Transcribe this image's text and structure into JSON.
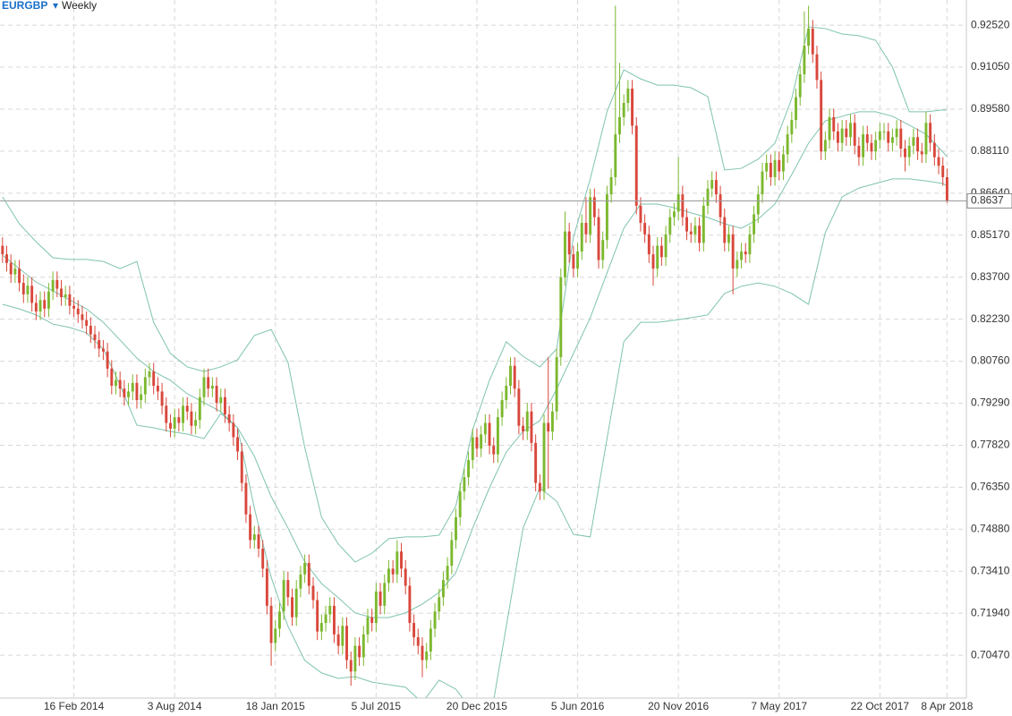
{
  "chart_data": {
    "type": "candlestick",
    "symbol": "EURGBP",
    "symbol_menu": "▾",
    "timeframe": "Weekly",
    "up_color": "#7cb82f",
    "down_color": "#d9473b",
    "grid": true,
    "xlim": [
      -0.6,
      229.6
    ],
    "xticks": [
      {
        "value": 17,
        "label": "16 Feb 2014"
      },
      {
        "value": 41,
        "label": "3 Aug 2014"
      },
      {
        "value": 65,
        "label": "18 Jan 2015"
      },
      {
        "value": 89,
        "label": "5 Jul 2015"
      },
      {
        "value": 113,
        "label": "20 Dec 2015"
      },
      {
        "value": 137,
        "label": "5 Jun 2016"
      },
      {
        "value": 161,
        "label": "20 Nov 2016"
      },
      {
        "value": 185,
        "label": "7 May 2017"
      },
      {
        "value": 209,
        "label": "22 Oct 2017"
      },
      {
        "value": 225,
        "label": "8 Apr 2018"
      }
    ],
    "ylim": [
      0.6897,
      0.934
    ],
    "yticks": [
      {
        "value": 0.9252,
        "label": "0.92520"
      },
      {
        "value": 0.9105,
        "label": "0.91050"
      },
      {
        "value": 0.8958,
        "label": "0.89580"
      },
      {
        "value": 0.8811,
        "label": "0.88110"
      },
      {
        "value": 0.8664,
        "label": "0.86640"
      },
      {
        "value": 0.8517,
        "label": "0.85170"
      },
      {
        "value": 0.837,
        "label": "0.83700"
      },
      {
        "value": 0.8223,
        "label": "0.82230"
      },
      {
        "value": 0.8076,
        "label": "0.80760"
      },
      {
        "value": 0.7929,
        "label": "0.79290"
      },
      {
        "value": 0.7782,
        "label": "0.77820"
      },
      {
        "value": 0.7635,
        "label": "0.76350"
      },
      {
        "value": 0.7488,
        "label": "0.74880"
      },
      {
        "value": 0.7341,
        "label": "0.73410"
      },
      {
        "value": 0.7194,
        "label": "0.71940"
      },
      {
        "value": 0.7047,
        "label": "0.70470"
      }
    ],
    "last_price": {
      "value": 0.8637,
      "label": "0.8637"
    },
    "open": [
      0.848,
      0.845,
      0.842,
      0.838,
      0.84,
      0.835,
      0.831,
      0.834,
      0.828,
      0.825,
      0.829,
      0.826,
      0.832,
      0.836,
      0.833,
      0.83,
      0.831,
      0.827,
      0.826,
      0.824,
      0.822,
      0.82,
      0.817,
      0.815,
      0.812,
      0.811,
      0.805,
      0.799,
      0.801,
      0.798,
      0.795,
      0.797,
      0.8,
      0.794,
      0.796,
      0.802,
      0.804,
      0.799,
      0.797,
      0.792,
      0.786,
      0.784,
      0.788,
      0.786,
      0.792,
      0.79,
      0.785,
      0.787,
      0.795,
      0.802,
      0.798,
      0.799,
      0.793,
      0.795,
      0.789,
      0.786,
      0.781,
      0.776,
      0.765,
      0.754,
      0.745,
      0.747,
      0.742,
      0.735,
      0.722,
      0.709,
      0.714,
      0.72,
      0.731,
      0.725,
      0.718,
      0.728,
      0.733,
      0.737,
      0.729,
      0.724,
      0.713,
      0.716,
      0.719,
      0.722,
      0.712,
      0.708,
      0.715,
      0.703,
      0.699,
      0.708,
      0.704,
      0.712,
      0.718,
      0.716,
      0.727,
      0.722,
      0.73,
      0.735,
      0.733,
      0.741,
      0.735,
      0.729,
      0.716,
      0.711,
      0.708,
      0.703,
      0.706,
      0.714,
      0.72,
      0.725,
      0.731,
      0.736,
      0.745,
      0.753,
      0.762,
      0.767,
      0.773,
      0.781,
      0.777,
      0.782,
      0.786,
      0.778,
      0.775,
      0.788,
      0.794,
      0.799,
      0.806,
      0.798,
      0.785,
      0.783,
      0.79,
      0.779,
      0.765,
      0.762,
      0.786,
      0.783,
      0.79,
      0.809,
      0.837,
      0.853,
      0.845,
      0.84,
      0.846,
      0.856,
      0.852,
      0.865,
      0.858,
      0.843,
      0.85,
      0.866,
      0.872,
      0.887,
      0.893,
      0.898,
      0.903,
      0.89,
      0.862,
      0.856,
      0.852,
      0.845,
      0.84,
      0.848,
      0.844,
      0.852,
      0.858,
      0.86,
      0.866,
      0.858,
      0.853,
      0.852,
      0.855,
      0.849,
      0.862,
      0.868,
      0.871,
      0.866,
      0.858,
      0.849,
      0.852,
      0.84,
      0.843,
      0.846,
      0.845,
      0.852,
      0.859,
      0.866,
      0.874,
      0.877,
      0.872,
      0.878,
      0.874,
      0.88,
      0.887,
      0.892,
      0.9,
      0.908,
      0.918,
      0.924,
      0.915,
      0.906,
      0.881,
      0.885,
      0.893,
      0.888,
      0.884,
      0.889,
      0.886,
      0.891,
      0.883,
      0.879,
      0.887,
      0.884,
      0.881,
      0.885,
      0.888,
      0.888,
      0.884,
      0.886,
      0.889,
      0.882,
      0.879,
      0.883,
      0.886,
      0.881,
      0.88,
      0.891,
      0.884,
      0.879,
      0.876,
      0.872
    ],
    "high": [
      0.851,
      0.848,
      0.845,
      0.843,
      0.843,
      0.838,
      0.837,
      0.837,
      0.831,
      0.832,
      0.832,
      0.835,
      0.839,
      0.839,
      0.836,
      0.834,
      0.834,
      0.83,
      0.829,
      0.827,
      0.825,
      0.823,
      0.82,
      0.818,
      0.815,
      0.814,
      0.808,
      0.804,
      0.804,
      0.801,
      0.8,
      0.803,
      0.803,
      0.799,
      0.805,
      0.807,
      0.807,
      0.802,
      0.8,
      0.795,
      0.789,
      0.791,
      0.791,
      0.795,
      0.795,
      0.793,
      0.79,
      0.798,
      0.805,
      0.805,
      0.802,
      0.802,
      0.798,
      0.798,
      0.792,
      0.789,
      0.784,
      0.779,
      0.768,
      0.757,
      0.75,
      0.75,
      0.745,
      0.738,
      0.725,
      0.717,
      0.723,
      0.734,
      0.734,
      0.728,
      0.731,
      0.736,
      0.74,
      0.74,
      0.732,
      0.727,
      0.719,
      0.722,
      0.725,
      0.725,
      0.715,
      0.718,
      0.718,
      0.706,
      0.711,
      0.711,
      0.715,
      0.721,
      0.721,
      0.73,
      0.73,
      0.733,
      0.738,
      0.738,
      0.745,
      0.744,
      0.738,
      0.732,
      0.719,
      0.714,
      0.711,
      0.709,
      0.717,
      0.723,
      0.728,
      0.734,
      0.739,
      0.748,
      0.756,
      0.765,
      0.77,
      0.776,
      0.784,
      0.784,
      0.785,
      0.789,
      0.789,
      0.781,
      0.791,
      0.797,
      0.802,
      0.809,
      0.809,
      0.801,
      0.788,
      0.793,
      0.793,
      0.782,
      0.768,
      0.789,
      0.809,
      0.793,
      0.812,
      0.84,
      0.86,
      0.856,
      0.848,
      0.849,
      0.859,
      0.865,
      0.868,
      0.868,
      0.861,
      0.853,
      0.869,
      0.875,
      0.932,
      0.912,
      0.901,
      0.906,
      0.906,
      0.893,
      0.865,
      0.859,
      0.855,
      0.848,
      0.851,
      0.851,
      0.855,
      0.861,
      0.863,
      0.879,
      0.869,
      0.861,
      0.856,
      0.858,
      0.858,
      0.865,
      0.871,
      0.874,
      0.874,
      0.869,
      0.861,
      0.855,
      0.855,
      0.846,
      0.849,
      0.849,
      0.855,
      0.862,
      0.869,
      0.877,
      0.88,
      0.88,
      0.881,
      0.881,
      0.883,
      0.89,
      0.895,
      0.903,
      0.911,
      0.93,
      0.932,
      0.927,
      0.918,
      0.909,
      0.888,
      0.896,
      0.896,
      0.891,
      0.892,
      0.892,
      0.894,
      0.894,
      0.886,
      0.89,
      0.89,
      0.887,
      0.888,
      0.891,
      0.891,
      0.891,
      0.889,
      0.892,
      0.892,
      0.885,
      0.886,
      0.889,
      0.889,
      0.884,
      0.895,
      0.894,
      0.887,
      0.882,
      0.879,
      0.875
    ],
    "low": [
      0.842,
      0.839,
      0.835,
      0.835,
      0.832,
      0.828,
      0.828,
      0.825,
      0.822,
      0.822,
      0.823,
      0.823,
      0.829,
      0.83,
      0.827,
      0.827,
      0.824,
      0.823,
      0.821,
      0.819,
      0.817,
      0.814,
      0.812,
      0.809,
      0.808,
      0.802,
      0.796,
      0.796,
      0.795,
      0.792,
      0.792,
      0.794,
      0.791,
      0.791,
      0.793,
      0.799,
      0.796,
      0.794,
      0.789,
      0.783,
      0.781,
      0.781,
      0.783,
      0.783,
      0.787,
      0.782,
      0.782,
      0.784,
      0.792,
      0.795,
      0.795,
      0.79,
      0.79,
      0.786,
      0.783,
      0.778,
      0.773,
      0.762,
      0.751,
      0.742,
      0.742,
      0.739,
      0.732,
      0.719,
      0.701,
      0.706,
      0.711,
      0.717,
      0.722,
      0.715,
      0.715,
      0.725,
      0.73,
      0.726,
      0.721,
      0.71,
      0.71,
      0.713,
      0.716,
      0.709,
      0.705,
      0.705,
      0.7,
      0.694,
      0.696,
      0.701,
      0.701,
      0.709,
      0.713,
      0.713,
      0.719,
      0.719,
      0.727,
      0.73,
      0.73,
      0.732,
      0.726,
      0.713,
      0.708,
      0.705,
      0.697,
      0.7,
      0.703,
      0.711,
      0.717,
      0.722,
      0.728,
      0.733,
      0.742,
      0.75,
      0.759,
      0.764,
      0.77,
      0.774,
      0.774,
      0.779,
      0.775,
      0.772,
      0.772,
      0.785,
      0.791,
      0.796,
      0.795,
      0.782,
      0.78,
      0.78,
      0.776,
      0.762,
      0.759,
      0.759,
      0.763,
      0.78,
      0.787,
      0.806,
      0.834,
      0.842,
      0.837,
      0.837,
      0.843,
      0.849,
      0.849,
      0.855,
      0.84,
      0.84,
      0.847,
      0.863,
      0.869,
      0.884,
      0.89,
      0.895,
      0.887,
      0.859,
      0.853,
      0.849,
      0.842,
      0.834,
      0.837,
      0.841,
      0.841,
      0.849,
      0.855,
      0.857,
      0.855,
      0.85,
      0.849,
      0.849,
      0.846,
      0.846,
      0.859,
      0.865,
      0.863,
      0.855,
      0.846,
      0.846,
      0.831,
      0.837,
      0.84,
      0.842,
      0.842,
      0.849,
      0.856,
      0.863,
      0.871,
      0.869,
      0.869,
      0.871,
      0.871,
      0.877,
      0.884,
      0.889,
      0.897,
      0.905,
      0.915,
      0.912,
      0.903,
      0.878,
      0.878,
      0.882,
      0.885,
      0.881,
      0.881,
      0.883,
      0.883,
      0.88,
      0.876,
      0.876,
      0.881,
      0.878,
      0.878,
      0.882,
      0.885,
      0.881,
      0.881,
      0.883,
      0.879,
      0.874,
      0.876,
      0.88,
      0.878,
      0.877,
      0.877,
      0.881,
      0.876,
      0.873,
      0.869,
      0.863
    ],
    "close": [
      0.845,
      0.842,
      0.838,
      0.84,
      0.835,
      0.831,
      0.834,
      0.828,
      0.825,
      0.829,
      0.826,
      0.832,
      0.836,
      0.833,
      0.83,
      0.831,
      0.827,
      0.826,
      0.824,
      0.822,
      0.82,
      0.817,
      0.815,
      0.812,
      0.811,
      0.805,
      0.799,
      0.801,
      0.798,
      0.795,
      0.797,
      0.8,
      0.794,
      0.796,
      0.802,
      0.804,
      0.799,
      0.797,
      0.792,
      0.786,
      0.784,
      0.788,
      0.786,
      0.792,
      0.79,
      0.785,
      0.787,
      0.795,
      0.802,
      0.798,
      0.799,
      0.793,
      0.795,
      0.789,
      0.786,
      0.781,
      0.776,
      0.765,
      0.754,
      0.745,
      0.747,
      0.742,
      0.735,
      0.722,
      0.709,
      0.714,
      0.72,
      0.731,
      0.725,
      0.718,
      0.728,
      0.733,
      0.737,
      0.729,
      0.724,
      0.713,
      0.716,
      0.719,
      0.722,
      0.712,
      0.708,
      0.715,
      0.703,
      0.699,
      0.708,
      0.704,
      0.712,
      0.718,
      0.716,
      0.727,
      0.722,
      0.73,
      0.735,
      0.733,
      0.741,
      0.735,
      0.729,
      0.716,
      0.711,
      0.708,
      0.703,
      0.706,
      0.714,
      0.72,
      0.725,
      0.731,
      0.736,
      0.745,
      0.753,
      0.762,
      0.767,
      0.773,
      0.781,
      0.777,
      0.782,
      0.786,
      0.778,
      0.775,
      0.788,
      0.794,
      0.799,
      0.806,
      0.798,
      0.785,
      0.783,
      0.79,
      0.779,
      0.765,
      0.762,
      0.786,
      0.783,
      0.79,
      0.809,
      0.837,
      0.853,
      0.845,
      0.84,
      0.846,
      0.856,
      0.852,
      0.865,
      0.858,
      0.843,
      0.85,
      0.866,
      0.872,
      0.887,
      0.893,
      0.898,
      0.903,
      0.89,
      0.862,
      0.856,
      0.852,
      0.845,
      0.84,
      0.848,
      0.844,
      0.852,
      0.858,
      0.86,
      0.866,
      0.858,
      0.853,
      0.852,
      0.855,
      0.849,
      0.862,
      0.868,
      0.871,
      0.866,
      0.858,
      0.849,
      0.852,
      0.84,
      0.843,
      0.846,
      0.845,
      0.852,
      0.859,
      0.866,
      0.874,
      0.877,
      0.872,
      0.878,
      0.874,
      0.88,
      0.887,
      0.892,
      0.9,
      0.908,
      0.918,
      0.924,
      0.915,
      0.906,
      0.881,
      0.885,
      0.893,
      0.888,
      0.884,
      0.889,
      0.886,
      0.891,
      0.883,
      0.879,
      0.887,
      0.884,
      0.881,
      0.885,
      0.888,
      0.888,
      0.884,
      0.886,
      0.889,
      0.882,
      0.879,
      0.883,
      0.886,
      0.881,
      0.88,
      0.891,
      0.884,
      0.879,
      0.876,
      0.872,
      0.8637
    ],
    "bands": {
      "color": "#7fc3ae",
      "x": [
        0,
        4,
        8,
        12,
        16,
        20,
        24,
        28,
        32,
        36,
        40,
        44,
        48,
        52,
        56,
        60,
        64,
        68,
        72,
        76,
        80,
        84,
        88,
        92,
        96,
        100,
        104,
        108,
        112,
        116,
        120,
        124,
        128,
        132,
        136,
        140,
        144,
        148,
        152,
        156,
        160,
        164,
        168,
        172,
        176,
        180,
        184,
        188,
        192,
        196,
        200,
        204,
        208,
        212,
        216,
        220,
        224,
        225
      ],
      "upper": [
        0.8651,
        0.8557,
        0.8494,
        0.8438,
        0.8432,
        0.8432,
        0.8425,
        0.84,
        0.8425,
        0.8212,
        0.8103,
        0.8056,
        0.804,
        0.8056,
        0.8081,
        0.8166,
        0.8187,
        0.8072,
        0.7774,
        0.753,
        0.7436,
        0.7373,
        0.7404,
        0.7455,
        0.7461,
        0.7461,
        0.7467,
        0.757,
        0.7837,
        0.8009,
        0.8144,
        0.8093,
        0.8056,
        0.8119,
        0.851,
        0.8714,
        0.8949,
        0.9096,
        0.9064,
        0.9042,
        0.9042,
        0.9033,
        0.9002,
        0.8745,
        0.8751,
        0.8783,
        0.8839,
        0.8995,
        0.9246,
        0.924,
        0.9221,
        0.9215,
        0.9199,
        0.9105,
        0.8949,
        0.8949,
        0.8955,
        0.8955
      ],
      "middle": [
        0.8447,
        0.84,
        0.8353,
        0.8322,
        0.8291,
        0.8259,
        0.8212,
        0.815,
        0.8087,
        0.804,
        0.8009,
        0.7962,
        0.7931,
        0.7899,
        0.7843,
        0.7743,
        0.7602,
        0.7492,
        0.7373,
        0.7298,
        0.7248,
        0.7195,
        0.7179,
        0.7179,
        0.7195,
        0.7226,
        0.7267,
        0.7336,
        0.7492,
        0.7633,
        0.7758,
        0.783,
        0.7868,
        0.7978,
        0.8103,
        0.8228,
        0.8385,
        0.8541,
        0.8626,
        0.8626,
        0.8613,
        0.8595,
        0.8579,
        0.8557,
        0.8541,
        0.8573,
        0.8626,
        0.8729,
        0.8839,
        0.8917,
        0.8933,
        0.8949,
        0.8949,
        0.8933,
        0.8902,
        0.887,
        0.8808,
        0.8792
      ],
      "lower": [
        0.8275,
        0.8259,
        0.8238,
        0.8206,
        0.8194,
        0.8175,
        0.8119,
        0.7993,
        0.7852,
        0.7843,
        0.783,
        0.7821,
        0.7805,
        0.7893,
        0.7843,
        0.7561,
        0.732,
        0.7148,
        0.7029,
        0.6985,
        0.6966,
        0.6972,
        0.6953,
        0.6944,
        0.6935,
        0.6881,
        0.696,
        0.6928,
        0.685,
        0.6803,
        0.7148,
        0.7492,
        0.7633,
        0.7586,
        0.747,
        0.7461,
        0.7805,
        0.8144,
        0.8212,
        0.8212,
        0.8219,
        0.8228,
        0.8238,
        0.8313,
        0.8338,
        0.835,
        0.8338,
        0.8313,
        0.8275,
        0.8526,
        0.8651,
        0.8682,
        0.8698,
        0.8714,
        0.8714,
        0.8707,
        0.8698,
        0.8689
      ]
    }
  }
}
